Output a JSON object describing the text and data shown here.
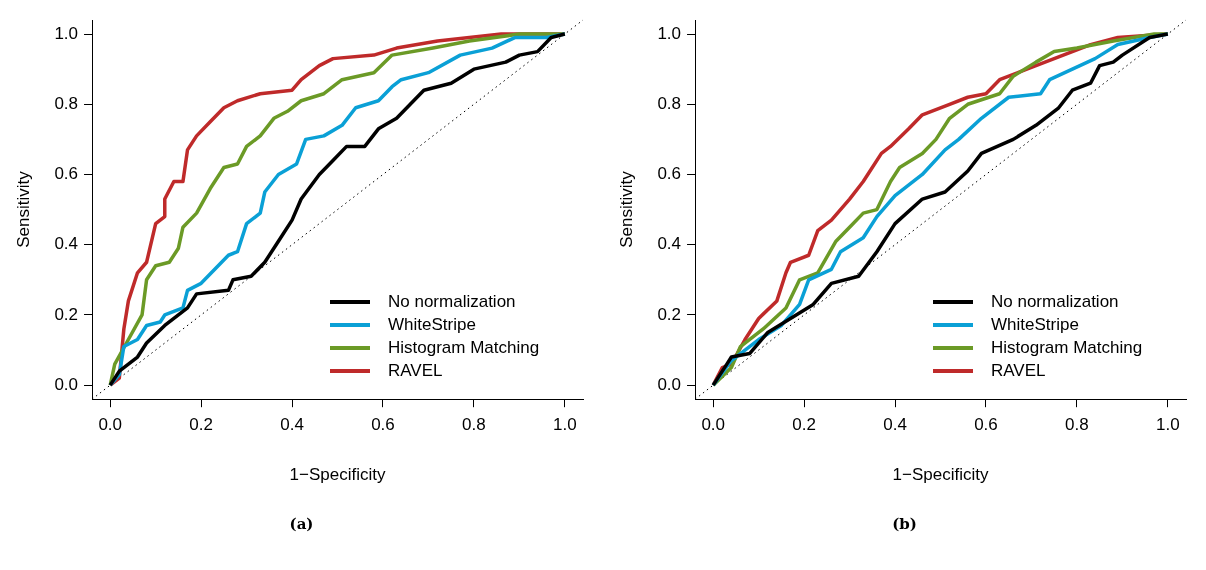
{
  "chart_data": [
    {
      "type": "line",
      "xlabel": "1−Specificity",
      "ylabel": "Sensitivity",
      "xlim": [
        -0.04,
        1.04
      ],
      "ylim": [
        -0.04,
        1.04
      ],
      "xticks": [
        {
          "value": 0,
          "label": "0.0"
        },
        {
          "value": 0.2,
          "label": "0.2"
        },
        {
          "value": 0.4,
          "label": "0.4"
        },
        {
          "value": 0.6,
          "label": "0.6"
        },
        {
          "value": 0.8,
          "label": "0.8"
        },
        {
          "value": 1,
          "label": "1.0"
        }
      ],
      "yticks": [
        {
          "value": 0,
          "label": "0.0"
        },
        {
          "value": 0.2,
          "label": "0.2"
        },
        {
          "value": 0.4,
          "label": "0.4"
        },
        {
          "value": 0.6,
          "label": "0.6"
        },
        {
          "value": 0.8,
          "label": "0.8"
        },
        {
          "value": 1,
          "label": "1.0"
        }
      ],
      "grid": false,
      "legend": "bottom right",
      "marker": "none",
      "line_style": "solid",
      "annotations": [
        "(a)"
      ],
      "series": [
        {
          "name": "No normalization",
          "color": "#000000",
          "x": [
            0,
            0.02,
            0.06,
            0.08,
            0.12,
            0.17,
            0.19,
            0.26,
            0.27,
            0.31,
            0.34,
            0.37,
            0.4,
            0.42,
            0.46,
            0.49,
            0.52,
            0.56,
            0.59,
            0.63,
            0.66,
            0.69,
            0.75,
            0.8,
            0.87,
            0.9,
            0.94,
            0.97,
            1
          ],
          "values": [
            0,
            0.04,
            0.08,
            0.12,
            0.17,
            0.22,
            0.26,
            0.27,
            0.3,
            0.31,
            0.35,
            0.41,
            0.47,
            0.53,
            0.6,
            0.64,
            0.68,
            0.68,
            0.73,
            0.76,
            0.8,
            0.84,
            0.86,
            0.9,
            0.92,
            0.94,
            0.95,
            0.99,
            1
          ]
        },
        {
          "name": "WhiteStripe",
          "color": "#0aa0d6",
          "x": [
            0,
            0.02,
            0.03,
            0.06,
            0.08,
            0.11,
            0.12,
            0.16,
            0.17,
            0.2,
            0.23,
            0.26,
            0.28,
            0.3,
            0.33,
            0.34,
            0.37,
            0.41,
            0.43,
            0.47,
            0.51,
            0.54,
            0.59,
            0.62,
            0.64,
            0.7,
            0.77,
            0.84,
            0.89,
            0.96,
            1
          ],
          "values": [
            0,
            0.03,
            0.11,
            0.13,
            0.17,
            0.18,
            0.2,
            0.22,
            0.27,
            0.29,
            0.33,
            0.37,
            0.38,
            0.46,
            0.49,
            0.55,
            0.6,
            0.63,
            0.7,
            0.71,
            0.74,
            0.79,
            0.81,
            0.85,
            0.87,
            0.89,
            0.94,
            0.96,
            0.99,
            0.99,
            1
          ]
        },
        {
          "name": "Histogram Matching",
          "color": "#6b9a26",
          "x": [
            0,
            0.01,
            0.04,
            0.07,
            0.08,
            0.1,
            0.13,
            0.15,
            0.16,
            0.19,
            0.22,
            0.25,
            0.28,
            0.3,
            0.33,
            0.36,
            0.39,
            0.42,
            0.47,
            0.51,
            0.58,
            0.62,
            0.71,
            0.79,
            0.9,
            1
          ],
          "values": [
            0,
            0.06,
            0.13,
            0.2,
            0.3,
            0.34,
            0.35,
            0.39,
            0.45,
            0.49,
            0.56,
            0.62,
            0.63,
            0.68,
            0.71,
            0.76,
            0.78,
            0.81,
            0.83,
            0.87,
            0.89,
            0.94,
            0.96,
            0.98,
            1,
            1
          ]
        },
        {
          "name": "RAVEL",
          "color": "#bf2a2a",
          "x": [
            0,
            0.02,
            0.03,
            0.04,
            0.06,
            0.08,
            0.1,
            0.12,
            0.12,
            0.14,
            0.16,
            0.17,
            0.19,
            0.22,
            0.25,
            0.28,
            0.33,
            0.4,
            0.42,
            0.46,
            0.49,
            0.58,
            0.63,
            0.72,
            0.86,
            1
          ],
          "values": [
            0,
            0.02,
            0.16,
            0.24,
            0.32,
            0.35,
            0.46,
            0.48,
            0.53,
            0.58,
            0.58,
            0.67,
            0.71,
            0.75,
            0.79,
            0.81,
            0.83,
            0.84,
            0.87,
            0.91,
            0.93,
            0.94,
            0.96,
            0.98,
            1,
            1
          ]
        },
        {
          "color": "#000000",
          "line_style": "dotted",
          "x": [
            -0.04,
            1.04
          ],
          "values": [
            -0.04,
            1.04
          ]
        }
      ]
    },
    {
      "type": "line",
      "xlabel": "1−Specificity",
      "ylabel": "Sensitivity",
      "xlim": [
        -0.04,
        1.04
      ],
      "ylim": [
        -0.04,
        1.04
      ],
      "xticks": [
        {
          "value": 0,
          "label": "0.0"
        },
        {
          "value": 0.2,
          "label": "0.2"
        },
        {
          "value": 0.4,
          "label": "0.4"
        },
        {
          "value": 0.6,
          "label": "0.6"
        },
        {
          "value": 0.8,
          "label": "0.8"
        },
        {
          "value": 1,
          "label": "1.0"
        }
      ],
      "yticks": [
        {
          "value": 0,
          "label": "0.0"
        },
        {
          "value": 0.2,
          "label": "0.2"
        },
        {
          "value": 0.4,
          "label": "0.4"
        },
        {
          "value": 0.6,
          "label": "0.6"
        },
        {
          "value": 0.8,
          "label": "0.8"
        },
        {
          "value": 1,
          "label": "1.0"
        }
      ],
      "grid": false,
      "legend": "bottom right",
      "marker": "none",
      "line_style": "solid",
      "annotations": [
        "(b)"
      ],
      "series": [
        {
          "name": "No normalization",
          "color": "#000000",
          "x": [
            0,
            0.03,
            0.04,
            0.08,
            0.12,
            0.17,
            0.22,
            0.26,
            0.32,
            0.36,
            0.4,
            0.46,
            0.51,
            0.56,
            0.59,
            0.66,
            0.71,
            0.76,
            0.79,
            0.83,
            0.85,
            0.88,
            0.9,
            0.96,
            1
          ],
          "values": [
            0,
            0.06,
            0.08,
            0.09,
            0.15,
            0.19,
            0.23,
            0.29,
            0.31,
            0.38,
            0.46,
            0.53,
            0.55,
            0.61,
            0.66,
            0.7,
            0.74,
            0.79,
            0.84,
            0.86,
            0.91,
            0.92,
            0.94,
            0.99,
            1
          ]
        },
        {
          "name": "WhiteStripe",
          "color": "#0aa0d6",
          "x": [
            0,
            0.04,
            0.1,
            0.15,
            0.19,
            0.21,
            0.26,
            0.28,
            0.33,
            0.36,
            0.4,
            0.46,
            0.51,
            0.54,
            0.59,
            0.65,
            0.72,
            0.74,
            0.79,
            0.84,
            0.89,
            0.96,
            1
          ],
          "values": [
            0,
            0.07,
            0.13,
            0.17,
            0.23,
            0.3,
            0.33,
            0.38,
            0.42,
            0.48,
            0.54,
            0.6,
            0.67,
            0.7,
            0.76,
            0.82,
            0.83,
            0.87,
            0.9,
            0.93,
            0.97,
            0.99,
            1
          ]
        },
        {
          "name": "Histogram Matching",
          "color": "#6b9a26",
          "x": [
            0,
            0.04,
            0.06,
            0.11,
            0.16,
            0.19,
            0.23,
            0.27,
            0.3,
            0.33,
            0.36,
            0.39,
            0.41,
            0.46,
            0.49,
            0.52,
            0.56,
            0.63,
            0.66,
            0.71,
            0.75,
            0.8,
            0.88,
            0.97,
            1
          ],
          "values": [
            0,
            0.05,
            0.11,
            0.16,
            0.22,
            0.3,
            0.32,
            0.41,
            0.45,
            0.49,
            0.5,
            0.58,
            0.62,
            0.66,
            0.7,
            0.76,
            0.8,
            0.83,
            0.88,
            0.92,
            0.95,
            0.96,
            0.98,
            1,
            1
          ]
        },
        {
          "name": "RAVEL",
          "color": "#bf2a2a",
          "x": [
            0,
            0.02,
            0.04,
            0.07,
            0.1,
            0.14,
            0.16,
            0.17,
            0.21,
            0.23,
            0.26,
            0.3,
            0.33,
            0.34,
            0.37,
            0.39,
            0.43,
            0.46,
            0.52,
            0.56,
            0.6,
            0.63,
            0.69,
            0.75,
            0.79,
            0.83,
            0.89,
            1
          ],
          "values": [
            0,
            0.05,
            0.06,
            0.13,
            0.19,
            0.24,
            0.32,
            0.35,
            0.37,
            0.44,
            0.47,
            0.53,
            0.58,
            0.6,
            0.66,
            0.68,
            0.73,
            0.77,
            0.8,
            0.82,
            0.83,
            0.87,
            0.9,
            0.93,
            0.95,
            0.97,
            0.99,
            1
          ]
        },
        {
          "color": "#000000",
          "line_style": "dotted",
          "x": [
            -0.04,
            1.04
          ],
          "values": [
            -0.04,
            1.04
          ]
        }
      ]
    }
  ]
}
